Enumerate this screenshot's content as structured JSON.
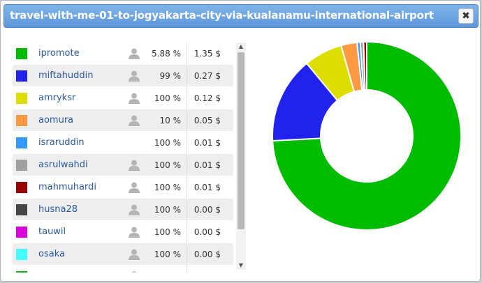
{
  "window": {
    "title": "travel-with-me-01-to-jogyakarta-city-via-kualanamu-international-airport",
    "close_label": "✖"
  },
  "rows": [
    {
      "color": "#00bb00",
      "name": "ipromote",
      "user_icon": true,
      "percent": "5.88 %",
      "cost": "1.35 $"
    },
    {
      "color": "#2222ee",
      "name": "miftahuddin",
      "user_icon": true,
      "percent": "99 %",
      "cost": "0.27 $"
    },
    {
      "color": "#dddd00",
      "name": "amryksr",
      "user_icon": true,
      "percent": "100 %",
      "cost": "0.12 $"
    },
    {
      "color": "#ff9944",
      "name": "aomura",
      "user_icon": true,
      "percent": "10 %",
      "cost": "0.05 $"
    },
    {
      "color": "#3399ff",
      "name": "israruddin",
      "user_icon": false,
      "percent": "100 %",
      "cost": "0.01 $"
    },
    {
      "color": "#a0a0a0",
      "name": "asrulwahdi",
      "user_icon": true,
      "percent": "100 %",
      "cost": "0.01 $"
    },
    {
      "color": "#990000",
      "name": "mahmuhardi",
      "user_icon": true,
      "percent": "100 %",
      "cost": "0.01 $"
    },
    {
      "color": "#444444",
      "name": "husna28",
      "user_icon": true,
      "percent": "100 %",
      "cost": "0.00 $"
    },
    {
      "color": "#dd00dd",
      "name": "tauwil",
      "user_icon": true,
      "percent": "100 %",
      "cost": "0.00 $"
    },
    {
      "color": "#44ffff",
      "name": "osaka",
      "user_icon": true,
      "percent": "100 %",
      "cost": "0.00 $"
    },
    {
      "color": "#00bb00",
      "name": "",
      "user_icon": true,
      "percent": "",
      "cost": ""
    }
  ],
  "chart_data": {
    "type": "pie",
    "style": "donut",
    "slices": [
      {
        "label": "ipromote",
        "value": 1.35,
        "color": "#00bb00"
      },
      {
        "label": "miftahuddin",
        "value": 0.27,
        "color": "#2222ee"
      },
      {
        "label": "amryksr",
        "value": 0.12,
        "color": "#dddd00"
      },
      {
        "label": "aomura",
        "value": 0.05,
        "color": "#ff9944"
      },
      {
        "label": "israruddin",
        "value": 0.01,
        "color": "#3399ff"
      },
      {
        "label": "asrulwahdi",
        "value": 0.01,
        "color": "#a0a0a0"
      },
      {
        "label": "mahmuhardi",
        "value": 0.01,
        "color": "#990000"
      }
    ]
  },
  "icons": {
    "user": "user-icon",
    "close": "close-icon"
  }
}
